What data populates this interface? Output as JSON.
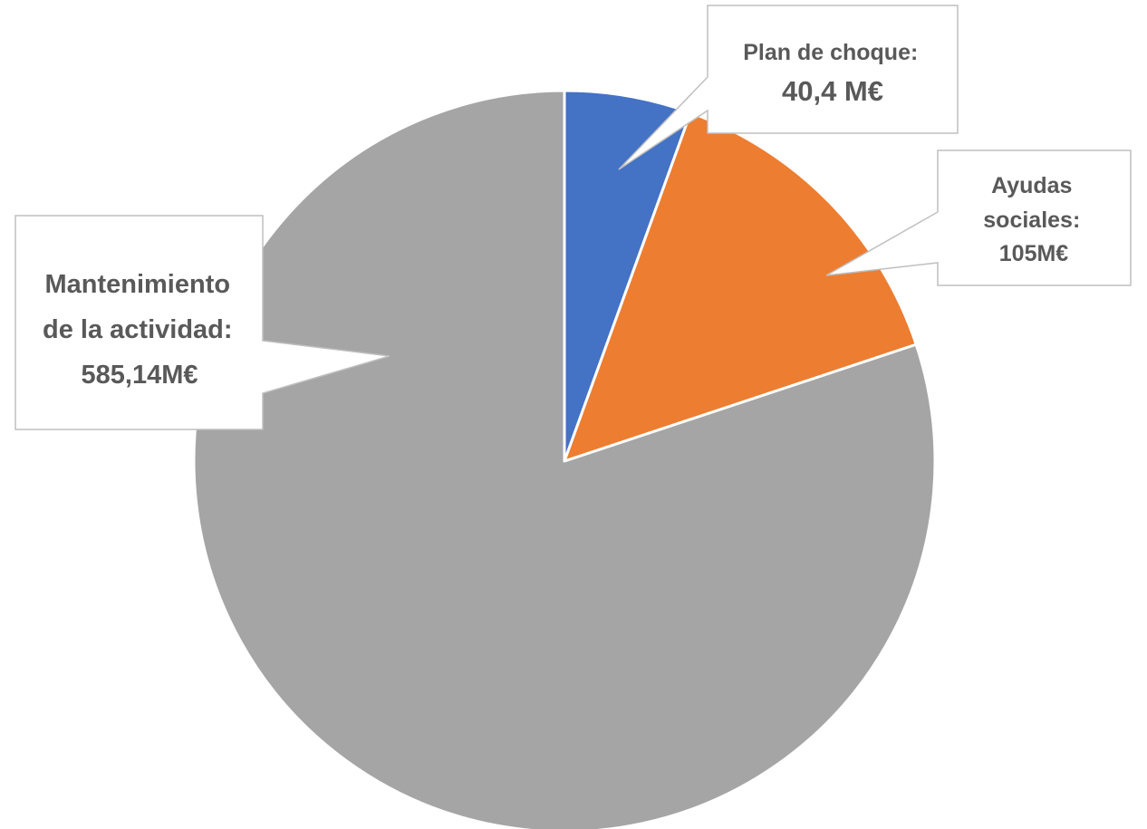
{
  "chart_data": {
    "type": "pie",
    "title": "",
    "start_angle_deg": 0,
    "direction": "clockwise",
    "legend": "none",
    "slices": [
      {
        "label": "Plan de choque",
        "value": 40.4,
        "display": [
          "Plan de choque:",
          "40,4 M€"
        ],
        "color": "#4472C4"
      },
      {
        "label": "Ayudas sociales",
        "value": 105,
        "display": [
          "Ayudas",
          "sociales:",
          "105M€"
        ],
        "color": "#ED7D31"
      },
      {
        "label": "Mantenimiento de la actividad",
        "value": 585.14,
        "display": [
          "Mantenimiento",
          "de la actividad:",
          "585,14M€"
        ],
        "color": "#A5A5A5"
      }
    ]
  }
}
